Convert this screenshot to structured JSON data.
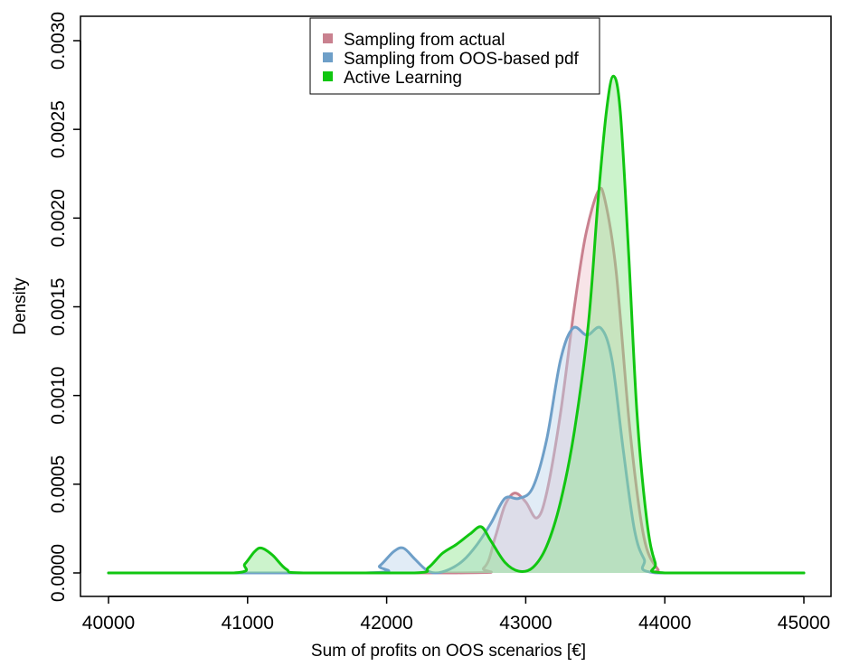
{
  "chart_data": {
    "type": "area",
    "xlabel": "Sum of profits on OOS scenarios [€]",
    "ylabel": "Density",
    "xlim": [
      40000,
      45000
    ],
    "ylim": [
      0,
      0.003
    ],
    "x_ticks": [
      40000,
      41000,
      42000,
      43000,
      44000,
      45000
    ],
    "x_tick_labels": [
      "40000",
      "41000",
      "42000",
      "43000",
      "44000",
      "45000"
    ],
    "y_ticks": [
      0,
      0.0005,
      0.001,
      0.0015,
      0.002,
      0.0025,
      0.003
    ],
    "y_tick_labels": [
      "0.0000",
      "0.0005",
      "0.0010",
      "0.0015",
      "0.0020",
      "0.0025",
      "0.0030"
    ],
    "grid": false,
    "legend_position": "top-center",
    "series": [
      {
        "name": "Sampling from actual",
        "color": "#c9818f",
        "fill": "#f0c4cc",
        "points": [
          [
            40000,
            0
          ],
          [
            42500,
            0
          ],
          [
            42700,
            3e-05
          ],
          [
            42780,
            0.0002
          ],
          [
            42850,
            0.00038
          ],
          [
            42920,
            0.00045
          ],
          [
            43000,
            0.0004
          ],
          [
            43080,
            0.00031
          ],
          [
            43150,
            0.00045
          ],
          [
            43250,
            0.0009
          ],
          [
            43350,
            0.0015
          ],
          [
            43430,
            0.0019
          ],
          [
            43520,
            0.00215
          ],
          [
            43570,
            0.0021
          ],
          [
            43650,
            0.0017
          ],
          [
            43750,
            0.0008
          ],
          [
            43850,
            0.0002
          ],
          [
            43950,
            2e-05
          ],
          [
            44000,
            0
          ],
          [
            45000,
            0
          ]
        ]
      },
      {
        "name": "Sampling from OOS-based pdf",
        "color": "#6e9fc8",
        "fill": "#bcd4ea",
        "points": [
          [
            40000,
            0
          ],
          [
            41850,
            0
          ],
          [
            41950,
            4e-05
          ],
          [
            42050,
            0.00012
          ],
          [
            42120,
            0.00014
          ],
          [
            42200,
            8e-05
          ],
          [
            42280,
            2e-05
          ],
          [
            42350,
            0
          ],
          [
            42450,
            2e-05
          ],
          [
            42550,
            7e-05
          ],
          [
            42650,
            0.00016
          ],
          [
            42750,
            0.00028
          ],
          [
            42850,
            0.00042
          ],
          [
            42950,
            0.00042
          ],
          [
            43050,
            0.00048
          ],
          [
            43150,
            0.00075
          ],
          [
            43250,
            0.0012
          ],
          [
            43340,
            0.00138
          ],
          [
            43440,
            0.00134
          ],
          [
            43540,
            0.00138
          ],
          [
            43620,
            0.0012
          ],
          [
            43700,
            0.0007
          ],
          [
            43780,
            0.00025
          ],
          [
            43850,
            8e-05
          ],
          [
            43950,
            0
          ],
          [
            45000,
            0
          ]
        ]
      },
      {
        "name": "Active Learning",
        "color": "#11c611",
        "fill": "#8fe48f",
        "points": [
          [
            40000,
            0
          ],
          [
            40900,
            0
          ],
          [
            40980,
            5e-05
          ],
          [
            41050,
            0.00012
          ],
          [
            41100,
            0.00014
          ],
          [
            41180,
            0.0001
          ],
          [
            41280,
            2e-05
          ],
          [
            41400,
            0
          ],
          [
            42200,
            0
          ],
          [
            42300,
            3e-05
          ],
          [
            42400,
            0.00011
          ],
          [
            42500,
            0.00016
          ],
          [
            42600,
            0.00022
          ],
          [
            42680,
            0.00026
          ],
          [
            42750,
            0.00018
          ],
          [
            42850,
            6e-05
          ],
          [
            42950,
            1e-05
          ],
          [
            43050,
            3e-05
          ],
          [
            43150,
            0.00015
          ],
          [
            43250,
            0.0004
          ],
          [
            43350,
            0.0008
          ],
          [
            43450,
            0.0014
          ],
          [
            43520,
            0.0021
          ],
          [
            43580,
            0.0026
          ],
          [
            43630,
            0.0028
          ],
          [
            43680,
            0.0026
          ],
          [
            43740,
            0.0018
          ],
          [
            43800,
            0.0009
          ],
          [
            43870,
            0.0003
          ],
          [
            43930,
            6e-05
          ],
          [
            44000,
            0
          ],
          [
            45000,
            0
          ]
        ]
      }
    ]
  }
}
